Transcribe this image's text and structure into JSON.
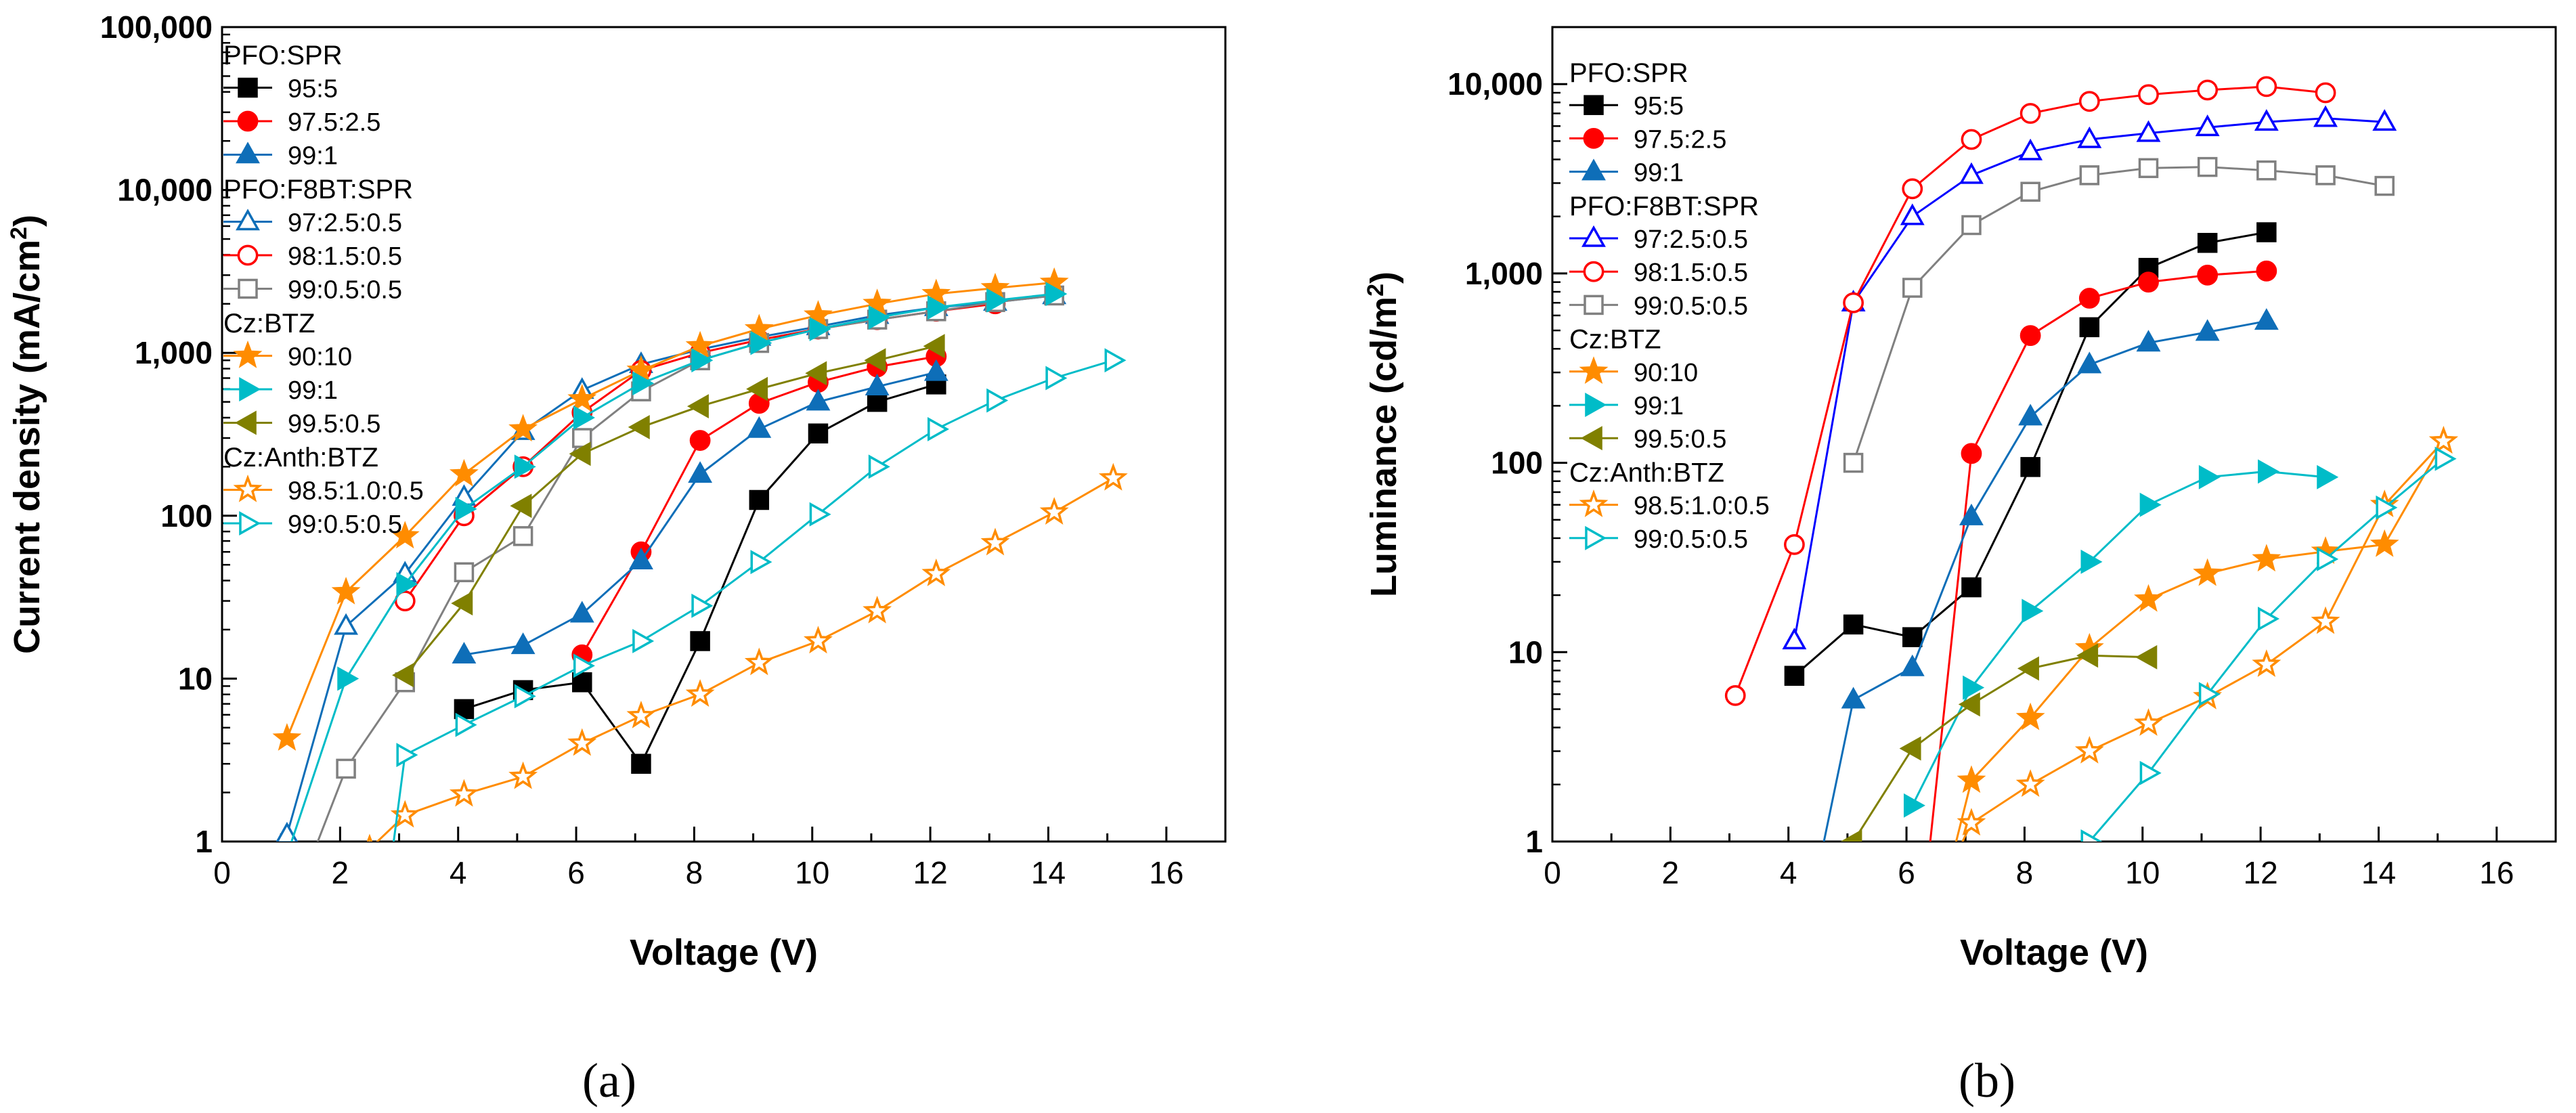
{
  "chart_data": [
    {
      "type": "line",
      "panel_label": "(a)",
      "xlabel": "Voltage (V)",
      "ylabel": "Current density (mA/cm²)",
      "ylabel_parts": {
        "main": "Current density (mA/cm",
        "sup": "2",
        "end": ")"
      },
      "xlim": [
        0,
        17
      ],
      "ylim": [
        1,
        100000
      ],
      "yscale": "log",
      "xticks": [
        0,
        2,
        4,
        6,
        8,
        10,
        12,
        14,
        16
      ],
      "xtick_labels": [
        "0",
        "2",
        "4",
        "6",
        "8",
        "10",
        "12",
        "14",
        "16"
      ],
      "yticks": [
        1,
        10,
        100,
        1000,
        10000,
        100000
      ],
      "ytick_labels": [
        "1",
        "10",
        "100",
        "1,000",
        "10,000",
        "100,000"
      ],
      "legend_groups": [
        "PFO:SPR",
        "PFO:F8BT:SPR",
        "Cz:BTZ",
        "Cz:Anth:BTZ"
      ],
      "series": [
        {
          "name": "95:5",
          "group": "PFO:SPR",
          "color": "#000000",
          "marker": "square",
          "filled": true,
          "x": [
            4.1,
            5.1,
            6.1,
            7.1,
            8.1,
            9.1,
            10.1,
            11.1,
            12.1
          ],
          "y": [
            6.5,
            8.5,
            9.5,
            3.0,
            17,
            125,
            320,
            500,
            640
          ]
        },
        {
          "name": "97.5:2.5",
          "group": "PFO:SPR",
          "color": "#ff0000",
          "marker": "circle",
          "filled": true,
          "x": [
            6.1,
            7.1,
            8.1,
            9.1,
            10.1,
            11.1,
            12.1
          ],
          "y": [
            14,
            60,
            290,
            490,
            660,
            820,
            950
          ]
        },
        {
          "name": "99:1",
          "group": "PFO:SPR",
          "color": "#0e6eb8",
          "marker": "triangle",
          "filled": true,
          "x": [
            4.1,
            5.1,
            6.1,
            7.1,
            8.1,
            9.1,
            10.1,
            11.1,
            12.1
          ],
          "y": [
            14,
            16,
            25,
            53,
            180,
            340,
            500,
            620,
            760
          ]
        },
        {
          "name": "97:2.5:0.5",
          "group": "PFO:F8BT:SPR",
          "color": "#0e6eb8",
          "marker": "triangle",
          "filled": false,
          "x": [
            1.1,
            2.1,
            3.1,
            4.1,
            5.1,
            6.1,
            7.1,
            8.1,
            9.1,
            10.1,
            11.1,
            12.1,
            13.1,
            14.1
          ],
          "y": [
            1.1,
            21,
            44,
            130,
            330,
            590,
            850,
            1050,
            1250,
            1450,
            1700,
            1900,
            2050,
            2250
          ]
        },
        {
          "name": "98:1.5:0.5",
          "group": "PFO:F8BT:SPR",
          "color": "#ff0000",
          "marker": "circle",
          "filled": false,
          "x": [
            3.1,
            4.1,
            5.1,
            6.1,
            7.1,
            8.1,
            9.1,
            10.1,
            11.1,
            12.1,
            13.1
          ],
          "y": [
            30,
            100,
            200,
            430,
            780,
            1000,
            1200,
            1400,
            1600,
            1800,
            2000
          ]
        },
        {
          "name": "99:0.5:0.5",
          "group": "PFO:F8BT:SPR",
          "color": "#808080",
          "marker": "square",
          "filled": false,
          "x": [
            1.3,
            2.1,
            3.1,
            4.1,
            5.1,
            6.1,
            7.1,
            8.1,
            9.1,
            10.1,
            11.1,
            12.1,
            13.1,
            14.1
          ],
          "y": [
            0.5,
            2.8,
            9.5,
            45,
            75,
            300,
            580,
            900,
            1150,
            1400,
            1600,
            1800,
            2050,
            2250
          ]
        },
        {
          "name": "90:10",
          "group": "Cz:BTZ",
          "color": "#ff8c00",
          "marker": "star",
          "filled": true,
          "x": [
            1.1,
            2.1,
            3.1,
            4.1,
            5.1,
            6.1,
            7.1,
            8.1,
            9.1,
            10.1,
            11.1,
            12.1,
            13.1,
            14.1
          ],
          "y": [
            4.3,
            34,
            75,
            180,
            340,
            520,
            780,
            1100,
            1400,
            1700,
            2000,
            2300,
            2500,
            2700
          ]
        },
        {
          "name": "99:1",
          "group": "Cz:BTZ",
          "color": "#00bcc8",
          "marker": "triangle-right",
          "filled": true,
          "x": [
            0.9,
            2.1,
            3.1,
            4.1,
            5.1,
            6.1,
            7.1,
            8.1,
            9.1,
            10.1,
            11.1,
            12.1,
            13.1,
            14.1
          ],
          "y": [
            0.5,
            10,
            38,
            110,
            200,
            400,
            650,
            900,
            1150,
            1400,
            1650,
            1900,
            2100,
            2300
          ]
        },
        {
          "name": "99.5:0.5",
          "group": "Cz:BTZ",
          "color": "#808000",
          "marker": "triangle-left",
          "filled": true,
          "x": [
            3.1,
            4.1,
            5.1,
            6.1,
            7.1,
            8.1,
            9.1,
            10.1,
            11.1,
            12.1
          ],
          "y": [
            10.5,
            29,
            115,
            240,
            350,
            470,
            600,
            750,
            900,
            1100
          ]
        },
        {
          "name": "98.5:1.0:0.5",
          "group": "Cz:Anth:BTZ",
          "color": "#ff8c00",
          "marker": "star",
          "filled": false,
          "x": [
            2.5,
            3.1,
            4.1,
            5.1,
            6.1,
            7.1,
            8.1,
            9.1,
            10.1,
            11.1,
            12.1,
            13.1,
            14.1,
            15.1
          ],
          "y": [
            0.9,
            1.45,
            1.95,
            2.5,
            4.0,
            5.9,
            8.0,
            12.5,
            17,
            26,
            44,
            68,
            105,
            170
          ]
        },
        {
          "name": "99:0.5:0.5",
          "group": "Cz:Anth:BTZ",
          "color": "#00bcc8",
          "marker": "triangle-right",
          "filled": false,
          "x": [
            2.8,
            3.1,
            4.1,
            5.1,
            6.1,
            7.1,
            8.1,
            9.1,
            10.1,
            11.1,
            12.1,
            13.1,
            14.1,
            15.1
          ],
          "y": [
            0.5,
            3.4,
            5.2,
            7.8,
            12,
            17,
            28,
            52,
            102,
            200,
            340,
            510,
            700,
            900
          ]
        }
      ]
    },
    {
      "type": "line",
      "panel_label": "(b)",
      "xlabel": "Voltage (V)",
      "ylabel": "Luminance (cd/m²)",
      "ylabel_parts": {
        "main": "Luminance (cd/m",
        "sup": "2",
        "end": ")"
      },
      "xlim": [
        0,
        17
      ],
      "ylim": [
        1,
        20000
      ],
      "yscale": "log",
      "xticks": [
        0,
        2,
        4,
        6,
        8,
        10,
        12,
        14,
        16
      ],
      "xtick_labels": [
        "0",
        "2",
        "4",
        "6",
        "8",
        "10",
        "12",
        "14",
        "16"
      ],
      "yticks": [
        1,
        10,
        100,
        1000,
        10000
      ],
      "ytick_labels": [
        "1",
        "10",
        "100",
        "1,000",
        "10,000"
      ],
      "legend_groups": [
        "PFO:SPR",
        "PFO:F8BT:SPR",
        "Cz:BTZ",
        "Cz:Anth:BTZ"
      ],
      "series": [
        {
          "name": "95:5",
          "group": "PFO:SPR",
          "color": "#000000",
          "marker": "square",
          "filled": true,
          "x": [
            4.1,
            5.1,
            6.1,
            7.1,
            8.1,
            9.1,
            10.1,
            11.1,
            12.1
          ],
          "y": [
            7.5,
            14,
            12,
            22,
            95,
            520,
            1070,
            1450,
            1650
          ]
        },
        {
          "name": "97.5:2.5",
          "group": "PFO:SPR",
          "color": "#ff0000",
          "marker": "circle",
          "filled": true,
          "x": [
            6.3,
            7.1,
            8.1,
            9.1,
            10.1,
            11.1,
            12.1
          ],
          "y": [
            0.5,
            112,
            470,
            740,
            900,
            980,
            1030
          ]
        },
        {
          "name": "99:1",
          "group": "PFO:SPR",
          "color": "#0e6eb8",
          "marker": "triangle",
          "filled": true,
          "x": [
            4.4,
            5.1,
            6.1,
            7.1,
            8.1,
            9.1,
            10.1,
            11.1,
            12.1
          ],
          "y": [
            0.5,
            5.6,
            8.3,
            52,
            175,
            330,
            430,
            490,
            560
          ]
        },
        {
          "name": "97:2.5:0.5",
          "group": "PFO:F8BT:SPR",
          "color": "#0000ff",
          "marker": "triangle",
          "filled": false,
          "x": [
            4.1,
            5.1,
            6.1,
            7.1,
            8.1,
            9.1,
            10.1,
            11.1,
            12.1,
            13.1,
            14.1
          ],
          "y": [
            11.5,
            700,
            2000,
            3300,
            4400,
            5100,
            5500,
            5900,
            6300,
            6600,
            6300
          ]
        },
        {
          "name": "98:1.5:0.5",
          "group": "PFO:F8BT:SPR",
          "color": "#ff0000",
          "marker": "circle",
          "filled": false,
          "x": [
            3.1,
            4.1,
            5.1,
            6.1,
            7.1,
            8.1,
            9.1,
            10.1,
            11.1,
            12.1,
            13.1
          ],
          "y": [
            5.9,
            37,
            700,
            2800,
            5100,
            7000,
            8100,
            8800,
            9300,
            9700,
            9000
          ]
        },
        {
          "name": "99:0.5:0.5",
          "group": "PFO:F8BT:SPR",
          "color": "#808080",
          "marker": "square",
          "filled": false,
          "x": [
            5.1,
            6.1,
            7.1,
            8.1,
            9.1,
            10.1,
            11.1,
            12.1,
            13.1,
            14.1
          ],
          "y": [
            100,
            840,
            1800,
            2700,
            3300,
            3600,
            3650,
            3500,
            3300,
            2900
          ]
        },
        {
          "name": "90:10",
          "group": "Cz:BTZ",
          "color": "#ff8c00",
          "marker": "star",
          "filled": true,
          "x": [
            6.6,
            7.1,
            8.1,
            9.1,
            10.1,
            11.1,
            12.1,
            13.1,
            14.1,
            15.1
          ],
          "y": [
            0.5,
            2.1,
            4.5,
            10.5,
            19,
            26,
            31,
            34,
            37,
            130
          ]
        },
        {
          "name": "99:1",
          "group": "Cz:BTZ",
          "color": "#00bcc8",
          "marker": "triangle-right",
          "filled": true,
          "x": [
            6.1,
            7.1,
            8.1,
            9.1,
            10.1,
            11.1,
            12.1,
            13.1
          ],
          "y": [
            1.55,
            6.5,
            16.5,
            30,
            60,
            84,
            90,
            84
          ]
        },
        {
          "name": "99.5:0.5",
          "group": "Cz:BTZ",
          "color": "#808000",
          "marker": "triangle-left",
          "filled": true,
          "x": [
            5.1,
            6.1,
            7.1,
            8.1,
            9.1,
            10.1
          ],
          "y": [
            1.0,
            3.1,
            5.3,
            8.2,
            9.6,
            9.4
          ]
        },
        {
          "name": "98.5:1.0:0.5",
          "group": "Cz:Anth:BTZ",
          "color": "#ff8c00",
          "marker": "star",
          "filled": false,
          "x": [
            6.8,
            7.1,
            8.1,
            9.1,
            10.1,
            11.1,
            12.1,
            13.1,
            14.1,
            15.1
          ],
          "y": [
            0.8,
            1.25,
            2.0,
            3.0,
            4.2,
            5.8,
            8.6,
            14.5,
            60,
            130
          ]
        },
        {
          "name": "99:0.5:0.5",
          "group": "Cz:Anth:BTZ",
          "color": "#00bcc8",
          "marker": "triangle-right",
          "filled": false,
          "x": [
            9.1,
            10.1,
            11.1,
            12.1,
            13.1,
            14.1,
            15.1
          ],
          "y": [
            1.0,
            2.3,
            6.0,
            15,
            31,
            58,
            105
          ]
        }
      ]
    }
  ]
}
